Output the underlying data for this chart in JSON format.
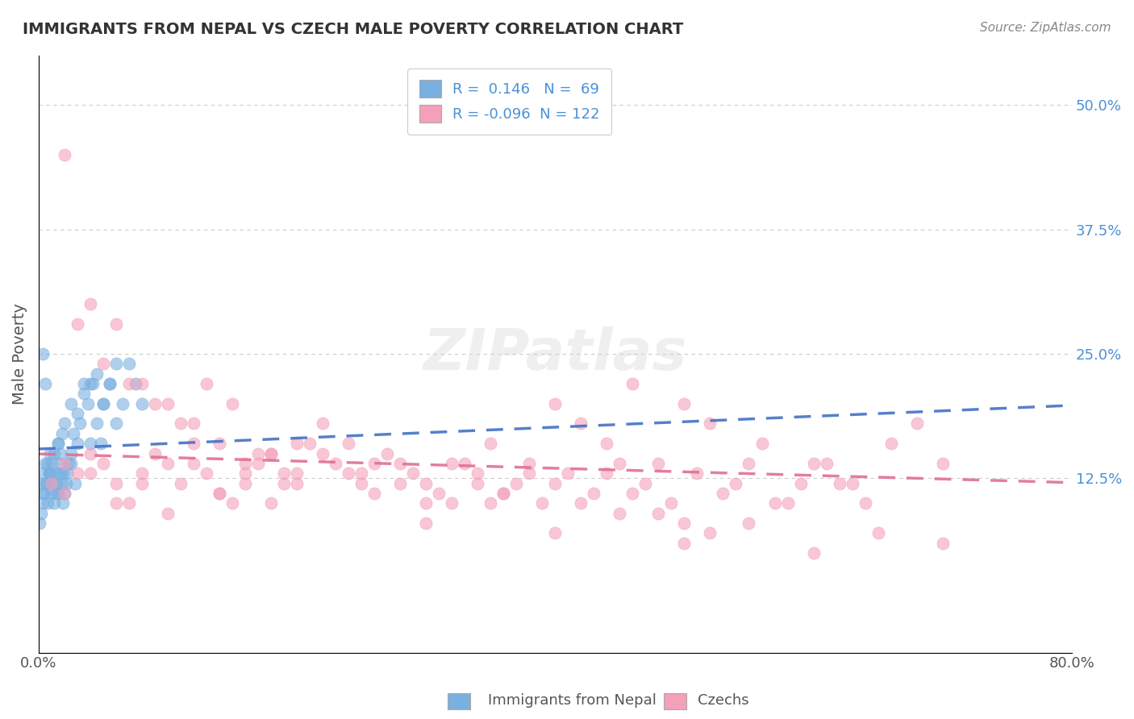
{
  "title": "IMMIGRANTS FROM NEPAL VS CZECH MALE POVERTY CORRELATION CHART",
  "source": "Source: ZipAtlas.com",
  "ylabel": "Male Poverty",
  "right_yticks": [
    0.0,
    0.125,
    0.25,
    0.375,
    0.5
  ],
  "right_yticklabels": [
    "",
    "12.5%",
    "25.0%",
    "37.5%",
    "50.0%"
  ],
  "xmin": 0.0,
  "xmax": 0.8,
  "ymin": -0.05,
  "ymax": 0.55,
  "nepal_color": "#7ab0e0",
  "czech_color": "#f4a0b8",
  "nepal_line_color": "#4472c4",
  "czech_line_color": "#e07090",
  "nepal_R": 0.146,
  "nepal_N": 69,
  "czech_R": -0.096,
  "czech_N": 122,
  "nepal_label": "Immigrants from Nepal",
  "czech_label": "Czechs",
  "legend_text_color": "#4a90d9",
  "watermark": "ZIPatlas",
  "nepal_scatter_x": [
    0.002,
    0.003,
    0.004,
    0.005,
    0.006,
    0.007,
    0.008,
    0.009,
    0.01,
    0.011,
    0.012,
    0.013,
    0.014,
    0.015,
    0.016,
    0.017,
    0.018,
    0.019,
    0.02,
    0.022,
    0.025,
    0.028,
    0.03,
    0.032,
    0.035,
    0.038,
    0.04,
    0.042,
    0.045,
    0.048,
    0.05,
    0.055,
    0.06,
    0.065,
    0.07,
    0.075,
    0.08,
    0.003,
    0.005,
    0.007,
    0.009,
    0.011,
    0.013,
    0.015,
    0.017,
    0.019,
    0.021,
    0.023,
    0.025,
    0.027,
    0.001,
    0.002,
    0.003,
    0.004,
    0.006,
    0.008,
    0.01,
    0.012,
    0.015,
    0.018,
    0.02,
    0.025,
    0.03,
    0.035,
    0.04,
    0.045,
    0.05,
    0.055,
    0.06
  ],
  "nepal_scatter_y": [
    0.12,
    0.13,
    0.11,
    0.14,
    0.12,
    0.1,
    0.13,
    0.15,
    0.11,
    0.12,
    0.1,
    0.13,
    0.12,
    0.11,
    0.14,
    0.13,
    0.12,
    0.1,
    0.11,
    0.13,
    0.14,
    0.12,
    0.16,
    0.18,
    0.22,
    0.2,
    0.16,
    0.22,
    0.18,
    0.16,
    0.2,
    0.22,
    0.18,
    0.2,
    0.24,
    0.22,
    0.2,
    0.25,
    0.22,
    0.14,
    0.13,
    0.12,
    0.11,
    0.16,
    0.15,
    0.13,
    0.12,
    0.14,
    0.15,
    0.17,
    0.08,
    0.09,
    0.1,
    0.11,
    0.12,
    0.13,
    0.14,
    0.15,
    0.16,
    0.17,
    0.18,
    0.2,
    0.19,
    0.21,
    0.22,
    0.23,
    0.2,
    0.22,
    0.24
  ],
  "czech_scatter_x": [
    0.02,
    0.04,
    0.06,
    0.08,
    0.1,
    0.12,
    0.14,
    0.16,
    0.18,
    0.2,
    0.22,
    0.24,
    0.26,
    0.28,
    0.3,
    0.32,
    0.34,
    0.36,
    0.38,
    0.4,
    0.42,
    0.44,
    0.46,
    0.48,
    0.5,
    0.52,
    0.54,
    0.56,
    0.58,
    0.6,
    0.62,
    0.64,
    0.66,
    0.68,
    0.7,
    0.03,
    0.05,
    0.07,
    0.09,
    0.11,
    0.13,
    0.15,
    0.17,
    0.19,
    0.21,
    0.23,
    0.25,
    0.27,
    0.29,
    0.31,
    0.33,
    0.35,
    0.37,
    0.39,
    0.41,
    0.43,
    0.45,
    0.47,
    0.49,
    0.51,
    0.53,
    0.55,
    0.57,
    0.59,
    0.61,
    0.63,
    0.01,
    0.02,
    0.03,
    0.04,
    0.05,
    0.06,
    0.07,
    0.08,
    0.09,
    0.1,
    0.11,
    0.12,
    0.13,
    0.14,
    0.15,
    0.16,
    0.17,
    0.18,
    0.19,
    0.2,
    0.25,
    0.3,
    0.35,
    0.4,
    0.45,
    0.5,
    0.55,
    0.6,
    0.65,
    0.7,
    0.02,
    0.04,
    0.06,
    0.08,
    0.1,
    0.12,
    0.14,
    0.16,
    0.18,
    0.2,
    0.22,
    0.24,
    0.26,
    0.28,
    0.3,
    0.32,
    0.34,
    0.36,
    0.38,
    0.4,
    0.42,
    0.44,
    0.46,
    0.48,
    0.5,
    0.52
  ],
  "czech_scatter_y": [
    0.45,
    0.3,
    0.28,
    0.22,
    0.2,
    0.18,
    0.16,
    0.14,
    0.15,
    0.13,
    0.18,
    0.16,
    0.14,
    0.12,
    0.1,
    0.14,
    0.12,
    0.11,
    0.13,
    0.2,
    0.18,
    0.16,
    0.22,
    0.14,
    0.2,
    0.18,
    0.12,
    0.16,
    0.1,
    0.14,
    0.12,
    0.1,
    0.16,
    0.18,
    0.14,
    0.28,
    0.24,
    0.22,
    0.2,
    0.18,
    0.22,
    0.2,
    0.15,
    0.13,
    0.16,
    0.14,
    0.12,
    0.15,
    0.13,
    0.11,
    0.14,
    0.16,
    0.12,
    0.1,
    0.13,
    0.11,
    0.14,
    0.12,
    0.1,
    0.13,
    0.11,
    0.14,
    0.1,
    0.12,
    0.14,
    0.12,
    0.12,
    0.14,
    0.13,
    0.15,
    0.14,
    0.12,
    0.1,
    0.13,
    0.15,
    0.14,
    0.12,
    0.16,
    0.13,
    0.11,
    0.1,
    0.12,
    0.14,
    0.15,
    0.12,
    0.16,
    0.13,
    0.08,
    0.1,
    0.07,
    0.09,
    0.06,
    0.08,
    0.05,
    0.07,
    0.06,
    0.11,
    0.13,
    0.1,
    0.12,
    0.09,
    0.14,
    0.11,
    0.13,
    0.1,
    0.12,
    0.15,
    0.13,
    0.11,
    0.14,
    0.12,
    0.1,
    0.13,
    0.11,
    0.14,
    0.12,
    0.1,
    0.13,
    0.11,
    0.09,
    0.08,
    0.07
  ]
}
